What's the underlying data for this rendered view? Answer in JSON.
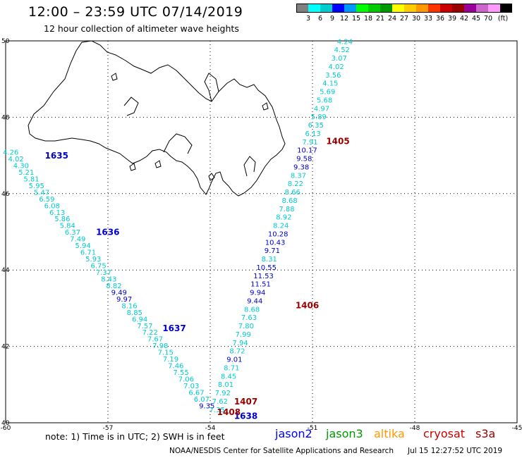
{
  "title": "12:00 – 23:59 UTC 07/14/2019",
  "subtitle": "12 hour collection of altimeter wave heights",
  "legend": {
    "unit": "(ft)",
    "colors": [
      "#808080",
      "#00ffff",
      "#00cccc",
      "#0000ff",
      "#0099ff",
      "#00ff00",
      "#00cc00",
      "#009900",
      "#ffff00",
      "#ffcc00",
      "#ff9900",
      "#ff3300",
      "#cc0000",
      "#990000",
      "#990099",
      "#cc66cc",
      "#ff99ff",
      "#000000"
    ],
    "labels": [
      "3",
      "6",
      "9",
      "12",
      "15",
      "18",
      "21",
      "24",
      "27",
      "30",
      "33",
      "36",
      "39",
      "42",
      "45",
      "70"
    ]
  },
  "axes": {
    "lon_labels": [
      "-60",
      "-57",
      "-54",
      "-51",
      "-48",
      "-45"
    ],
    "lat_labels": [
      "50",
      "48",
      "46",
      "44",
      "42",
      "40"
    ]
  },
  "passes": [
    {
      "time": "1635",
      "color": "#0000cc",
      "lon": -58.85,
      "lat": 46.92
    },
    {
      "time": "1636",
      "color": "#0000cc",
      "lon": -57.35,
      "lat": 44.92
    },
    {
      "time": "1637",
      "color": "#0000cc",
      "lon": -55.4,
      "lat": 42.4
    },
    {
      "time": "1638",
      "color": "#0000cc",
      "lon": -53.3,
      "lat": 40.1
    },
    {
      "time": "1405",
      "color": "#990000",
      "lon": -50.6,
      "lat": 47.3
    },
    {
      "time": "1406",
      "color": "#990000",
      "lon": -51.5,
      "lat": 43.0
    },
    {
      "time": "1407",
      "color": "#990000",
      "lon": -53.3,
      "lat": 40.48
    },
    {
      "time": "1408",
      "color": "#990000",
      "lon": -53.8,
      "lat": 40.2
    }
  ],
  "tracks": [
    {
      "name": "",
      "start": [
        -59.85,
        47.02
      ],
      "end": [
        -54.1,
        40.38
      ],
      "values": [
        "4.26",
        "4.02",
        "4.30",
        "5.21",
        "5.81",
        "5.95",
        "5.47",
        "6.59",
        "6.08",
        "6.13",
        "5.86",
        "5.84",
        "6.37",
        "7.49",
        "5.94",
        "6.71",
        "5.93",
        "6.75",
        "7.37",
        "8.43",
        "8.82",
        "9.49",
        "9.97",
        "8.16",
        "8.85",
        "6.94",
        "7.57",
        "7.22",
        "7.67",
        "7.98",
        "7.15",
        "7.19",
        "7.46",
        "7.55",
        "7.06",
        "7.03",
        "6.67",
        "6.07",
        "9.35"
      ],
      "colors": [
        "c",
        "c",
        "c",
        "c",
        "c",
        "c",
        "c",
        "c",
        "c",
        "c",
        "c",
        "c",
        "c",
        "c",
        "c",
        "c",
        "c",
        "c",
        "c",
        "c",
        "c",
        "b",
        "b",
        "c",
        "c",
        "c",
        "c",
        "c",
        "c",
        "c",
        "c",
        "c",
        "c",
        "c",
        "c",
        "c",
        "c",
        "c",
        "b"
      ]
    },
    {
      "name": "",
      "start": [
        -50.05,
        49.92
      ],
      "end": [
        -53.8,
        40.28
      ],
      "values": [
        "4.24",
        "4.52",
        "3.07",
        "4.02",
        "3.56",
        "4.15",
        "5.69",
        "5.68",
        "4.97",
        "5.89",
        "6.35",
        "6.13",
        "7.91",
        "10.17",
        "9.58",
        "9.38",
        "8.37",
        "8.22",
        "8.66",
        "8.68",
        "7.88",
        "8.92",
        "8.24",
        "10.28",
        "10.43",
        "9.71",
        "8.31",
        "10.55",
        "11.53",
        "11.51",
        "9.94",
        "9.44",
        "8.68",
        "7.63",
        "7.80",
        "7.99",
        "7.94",
        "8.72",
        "9.01",
        "8.71",
        "8.45",
        "8.01",
        "7.92",
        "7.62",
        "7.35"
      ],
      "colors": [
        "c",
        "c",
        "c",
        "c",
        "c",
        "c",
        "c",
        "c",
        "c",
        "c",
        "c",
        "c",
        "c",
        "b",
        "b",
        "b",
        "c",
        "c",
        "c",
        "c",
        "c",
        "c",
        "c",
        "b",
        "b",
        "b",
        "c",
        "b",
        "b",
        "b",
        "b",
        "b",
        "c",
        "c",
        "c",
        "c",
        "c",
        "c",
        "b",
        "c",
        "c",
        "c",
        "c",
        "c",
        "c"
      ]
    }
  ],
  "footer": {
    "note": "note:  1) Time is in UTC;  2) SWH is in feet",
    "satellites": [
      {
        "name": "jason2",
        "color": "#0000ff"
      },
      {
        "name": "jason3",
        "color": "#009900"
      },
      {
        "name": "altika",
        "color": "#ff9900"
      },
      {
        "name": "cryosat",
        "color": "#cc0000"
      },
      {
        "name": "s3a",
        "color": "#990000"
      }
    ],
    "credit": "NOAA/NESDIS Center for Satellite Applications and Research",
    "timestamp": "Jul 15 12:27:52 UTC 2019"
  }
}
